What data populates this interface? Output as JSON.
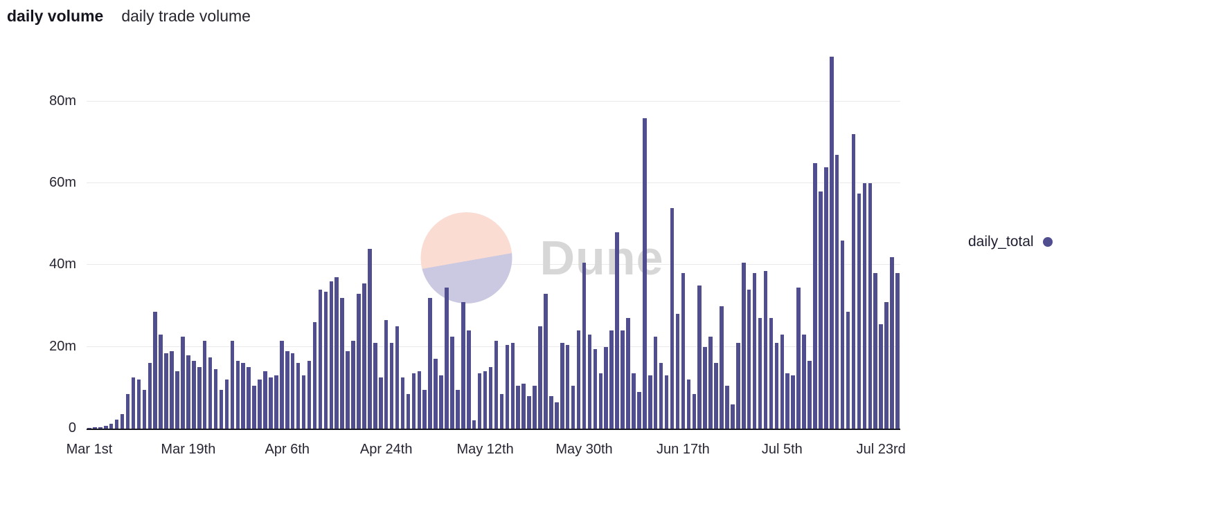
{
  "header": {
    "title": "daily volume",
    "subtitle": "daily trade volume"
  },
  "legend": {
    "label": "daily_total"
  },
  "watermark": {
    "text": "Dune"
  },
  "colors": {
    "bar": "#504e8e",
    "grid": "#e9e9ec",
    "baseline": "#181822",
    "watermark_top": "#fadcd3",
    "watermark_bottom": "#cbc9e2",
    "watermark_text": "#d7d7d7"
  },
  "chart_data": {
    "type": "bar",
    "title": "daily volume",
    "subtitle": "daily trade volume",
    "xlabel": "",
    "ylabel": "",
    "unit": "millions",
    "ylim": [
      0,
      93
    ],
    "grid": "horizontal",
    "legend_position": "right",
    "y_ticks": [
      {
        "label": "0",
        "value": 0
      },
      {
        "label": "20m",
        "value": 20
      },
      {
        "label": "40m",
        "value": 40
      },
      {
        "label": "60m",
        "value": 60
      },
      {
        "label": "80m",
        "value": 80
      }
    ],
    "x_ticks": [
      {
        "label": "Mar 1st",
        "index": 0
      },
      {
        "label": "Mar 19th",
        "index": 18
      },
      {
        "label": "Apr 6th",
        "index": 36
      },
      {
        "label": "Apr 24th",
        "index": 54
      },
      {
        "label": "May 12th",
        "index": 72
      },
      {
        "label": "May 30th",
        "index": 90
      },
      {
        "label": "Jun 17th",
        "index": 108
      },
      {
        "label": "Jul 5th",
        "index": 126
      },
      {
        "label": "Jul 23rd",
        "index": 144
      }
    ],
    "x_start_date": "Mar 1",
    "x_cadence": "daily",
    "series": [
      {
        "name": "daily_total",
        "values": [
          0.2,
          0.3,
          0.4,
          0.7,
          1.2,
          2.2,
          3.5,
          8.5,
          12.5,
          12.0,
          9.5,
          16.0,
          28.5,
          23.0,
          18.5,
          19.0,
          14.0,
          22.5,
          18.0,
          16.5,
          15.0,
          21.5,
          17.5,
          14.5,
          9.5,
          12.0,
          21.5,
          16.5,
          16.0,
          15.0,
          10.5,
          12.0,
          14.0,
          12.5,
          13.0,
          21.5,
          19.0,
          18.5,
          16.0,
          13.0,
          16.5,
          26.0,
          34.0,
          33.5,
          36.0,
          37.0,
          32.0,
          19.0,
          21.5,
          33.0,
          35.5,
          44.0,
          21.0,
          12.5,
          26.5,
          21.0,
          25.0,
          12.5,
          8.5,
          13.5,
          14.0,
          9.5,
          32.0,
          17.0,
          13.0,
          34.5,
          22.5,
          9.5,
          31.0,
          24.0,
          2.0,
          13.5,
          14.0,
          15.0,
          21.5,
          8.5,
          20.5,
          21.0,
          10.5,
          11.0,
          8.0,
          10.5,
          25.0,
          33.0,
          8.0,
          6.5,
          21.0,
          20.5,
          10.5,
          24.0,
          40.5,
          23.0,
          19.5,
          13.5,
          20.0,
          24.0,
          48.0,
          24.0,
          27.0,
          13.5,
          9.0,
          76.0,
          13.0,
          22.5,
          16.0,
          13.0,
          54.0,
          28.0,
          38.0,
          12.0,
          8.5,
          35.0,
          20.0,
          22.5,
          16.0,
          30.0,
          10.5,
          6.0,
          21.0,
          40.5,
          34.0,
          38.0,
          27.0,
          38.5,
          27.0,
          21.0,
          23.0,
          13.5,
          13.0,
          34.5,
          23.0,
          16.5,
          65.0,
          58.0,
          64.0,
          91.0,
          67.0,
          46.0,
          28.5,
          72.0,
          57.5,
          60.0,
          60.0,
          38.0,
          25.5,
          31.0,
          42.0,
          38.0
        ]
      }
    ]
  }
}
